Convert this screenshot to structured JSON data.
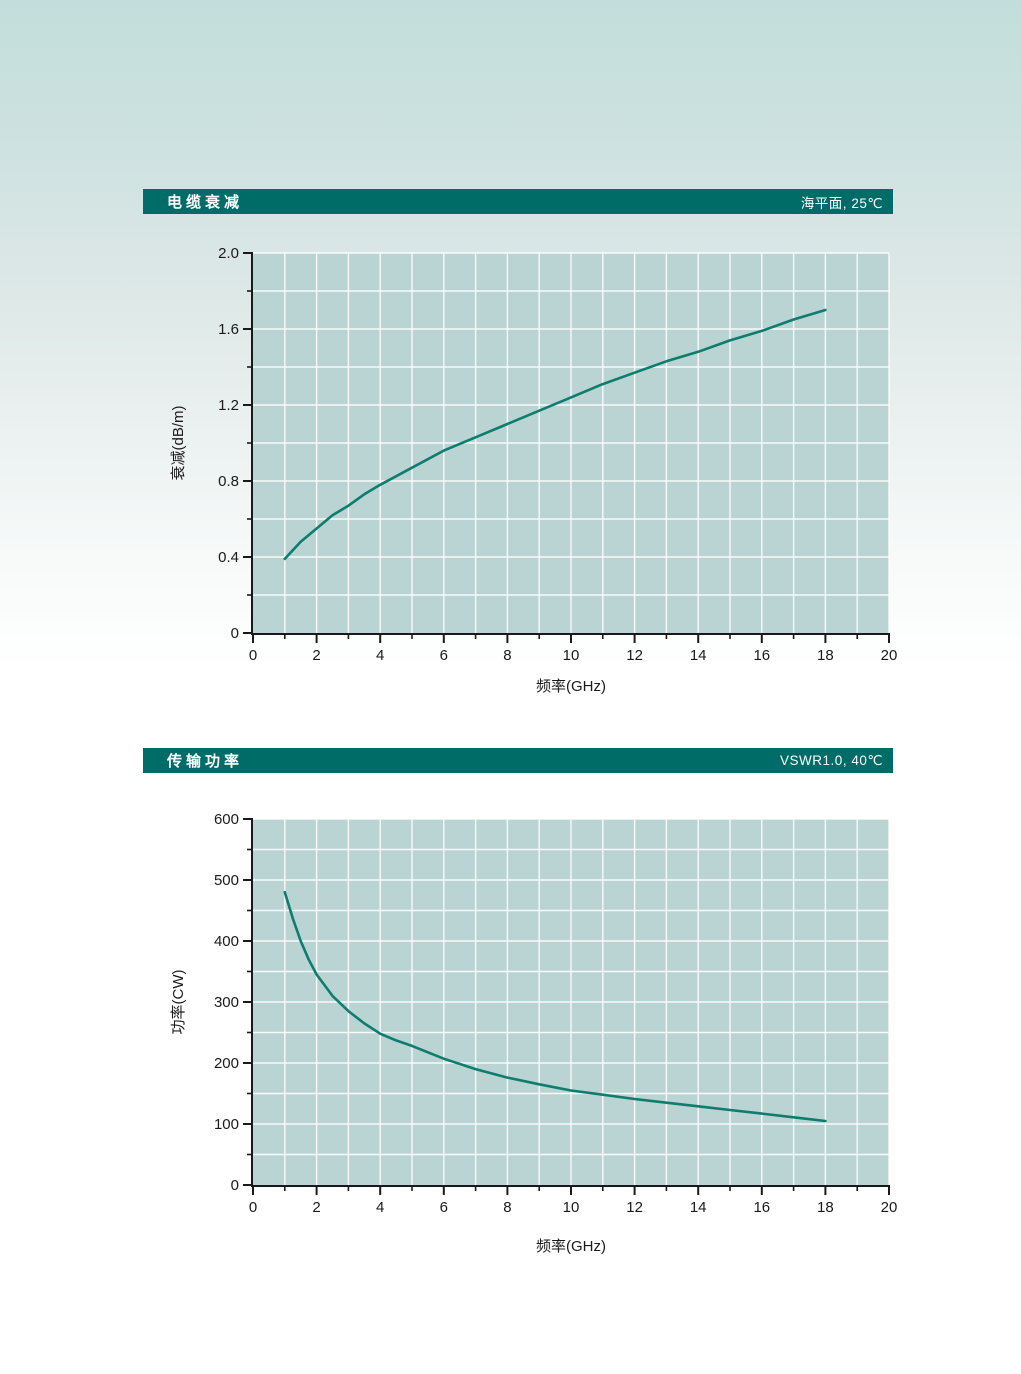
{
  "headers": [
    {
      "title": "电缆衰减",
      "condition": "海平面, 25℃"
    },
    {
      "title": "传输功率",
      "condition": "VSWR1.0, 40℃"
    }
  ],
  "colors": {
    "header_bar": "#006c68",
    "header_text": "#ffffff",
    "plot_background": "#b9d4d2",
    "gridline": "#ffffff",
    "axis": "#1a1a1a",
    "curve": "#0e7c6e",
    "page_gradient_top": "#c2dedb",
    "page_gradient_bottom": "#ffffff"
  },
  "chart_data": [
    {
      "type": "line",
      "title": "电缆衰减",
      "condition": "海平面, 25℃",
      "xlabel": "频率(GHz)",
      "ylabel": "衰减(dB/m)",
      "xlim": [
        0,
        20
      ],
      "ylim": [
        0,
        2.0
      ],
      "x_major_ticks": [
        0,
        2,
        4,
        6,
        8,
        10,
        12,
        14,
        16,
        18,
        20
      ],
      "x_major_labels": [
        "0",
        "2",
        "4",
        "6",
        "8",
        "10",
        "12",
        "14",
        "16",
        "18",
        "20"
      ],
      "x_minor_step": 1,
      "y_major_ticks": [
        0,
        0.4,
        0.8,
        1.2,
        1.6,
        2.0
      ],
      "y_major_labels": [
        "0",
        "0.4",
        "0.8",
        "1.2",
        "1.6",
        "2.0"
      ],
      "y_minor_step": 0.2,
      "x_grid_step": 1,
      "y_grid_step": 0.2,
      "grid": "on",
      "legend": "none",
      "series": [
        {
          "name": "衰减",
          "x": [
            1,
            1.5,
            2,
            2.5,
            3,
            3.5,
            4,
            5,
            6,
            7,
            8,
            9,
            10,
            11,
            12,
            13,
            14,
            15,
            16,
            17,
            18
          ],
          "y": [
            0.39,
            0.48,
            0.55,
            0.62,
            0.67,
            0.73,
            0.78,
            0.87,
            0.96,
            1.03,
            1.1,
            1.17,
            1.24,
            1.31,
            1.37,
            1.43,
            1.48,
            1.54,
            1.59,
            1.65,
            1.7
          ]
        }
      ]
    },
    {
      "type": "line",
      "title": "传输功率",
      "condition": "VSWR1.0, 40℃",
      "xlabel": "频率(GHz)",
      "ylabel": "功率(CW)",
      "xlim": [
        0,
        20
      ],
      "ylim": [
        0,
        600
      ],
      "x_major_ticks": [
        0,
        2,
        4,
        6,
        8,
        10,
        12,
        14,
        16,
        18,
        20
      ],
      "x_major_labels": [
        "0",
        "2",
        "4",
        "6",
        "8",
        "10",
        "12",
        "14",
        "16",
        "18",
        "20"
      ],
      "x_minor_step": 1,
      "y_major_ticks": [
        0,
        100,
        200,
        300,
        400,
        500,
        600
      ],
      "y_major_labels": [
        "0",
        "100",
        "200",
        "300",
        "400",
        "500",
        "600"
      ],
      "y_minor_step": 50,
      "x_grid_step": 1,
      "y_grid_step": 50,
      "grid": "on",
      "legend": "none",
      "series": [
        {
          "name": "功率",
          "x": [
            1,
            1.25,
            1.5,
            1.75,
            2,
            2.5,
            3,
            3.5,
            4,
            4.5,
            5,
            6,
            7,
            8,
            9,
            10,
            11,
            12,
            13,
            14,
            15,
            16,
            17,
            18
          ],
          "y": [
            480,
            437,
            400,
            370,
            345,
            310,
            285,
            265,
            248,
            237,
            228,
            207,
            190,
            176,
            165,
            155,
            148,
            141,
            135,
            129,
            123,
            117,
            111,
            105
          ]
        }
      ]
    }
  ]
}
